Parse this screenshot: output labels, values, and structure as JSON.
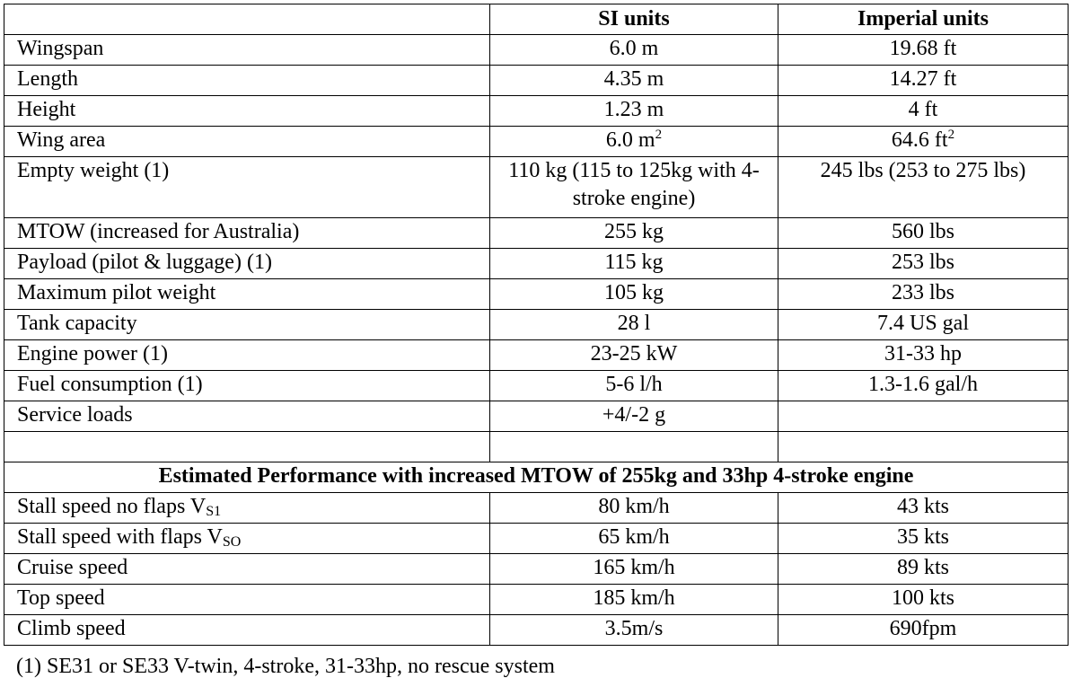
{
  "table": {
    "header": [
      "SI units",
      "Imperial units"
    ],
    "rows": [
      [
        "Wingspan",
        "6.0  m",
        "19.68 ft"
      ],
      [
        "Length",
        "4.35 m",
        "14.27 ft"
      ],
      [
        "Height",
        "1.23 m",
        "4 ft"
      ],
      [
        "Wing area",
        {
          "text": "6.0 m",
          "sup": "2"
        },
        {
          "text": "64.6 ft",
          "sup": "2"
        }
      ],
      [
        "Empty weight (1)",
        "110 kg (115 to 125kg with 4-stroke engine)",
        "245 lbs (253 to 275 lbs)"
      ],
      [
        "MTOW (increased for Australia)",
        "255 kg",
        "560 lbs"
      ],
      [
        "Payload (pilot & luggage) (1)",
        "115 kg",
        "253 lbs"
      ],
      [
        "Maximum pilot weight",
        "105 kg",
        "233 lbs"
      ],
      [
        "Tank capacity",
        "28 l",
        "7.4 US gal"
      ],
      [
        "Engine power (1)",
        "23-25 kW",
        "31-33 hp"
      ],
      [
        "Fuel consumption (1)",
        "5-6 l/h",
        "1.3-1.6 gal/h"
      ],
      [
        "Service loads",
        "+4/-2 g"
      ]
    ],
    "section_title": "Estimated Performance with increased MTOW of 255kg and 33hp 4-stroke engine",
    "performance_rows": [
      [
        {
          "text": "Stall speed no flaps V",
          "sub": "S1"
        },
        "80 km/h",
        "43 kts"
      ],
      [
        {
          "text": "Stall speed with flaps V",
          "sub": "SO"
        },
        "65 km/h",
        "35 kts"
      ],
      [
        "Cruise speed",
        "165 km/h",
        "89 kts"
      ],
      [
        "Top speed",
        "185 km/h",
        "100 kts"
      ],
      [
        "Climb speed",
        "3.5m/s",
        "690fpm"
      ]
    ],
    "footnote": "(1) SE31 or SE33 V-twin, 4-stroke, 31-33hp, no rescue system"
  }
}
